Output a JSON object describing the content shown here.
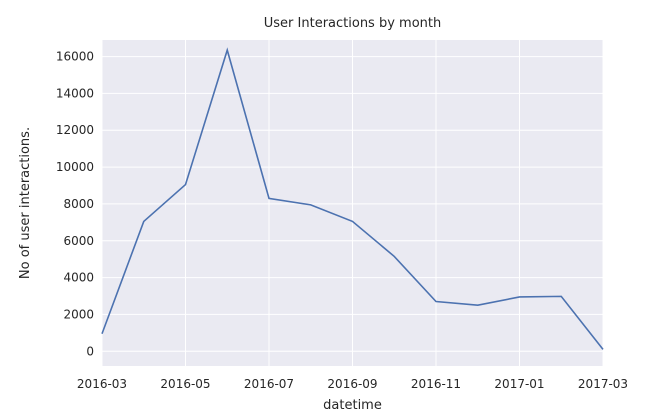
{
  "chart_data": {
    "type": "line",
    "title": "User Interactions by month",
    "xlabel": "datetime",
    "ylabel": "No of user interactions.",
    "xlim": [
      "2016-03",
      "2017-03"
    ],
    "ylim": [
      -800,
      16900
    ],
    "x_ticks": [
      "2016-03",
      "2016-05",
      "2016-07",
      "2016-09",
      "2016-11",
      "2017-01",
      "2017-03"
    ],
    "y_ticks": [
      0,
      2000,
      4000,
      6000,
      8000,
      10000,
      12000,
      14000,
      16000
    ],
    "grid": true,
    "colors": {
      "line": "#4c72b0",
      "plot_background": "#eaeaf2",
      "grid": "#ffffff"
    },
    "series": [
      {
        "x": [
          "2016-03",
          "2016-04",
          "2016-05",
          "2016-06",
          "2016-07",
          "2016-08",
          "2016-09",
          "2016-10",
          "2016-11",
          "2016-12",
          "2017-01",
          "2017-02",
          "2017-03"
        ],
        "values": [
          950,
          7050,
          9050,
          16350,
          8300,
          7950,
          7050,
          5150,
          2700,
          2500,
          2950,
          2980,
          100
        ]
      }
    ]
  }
}
